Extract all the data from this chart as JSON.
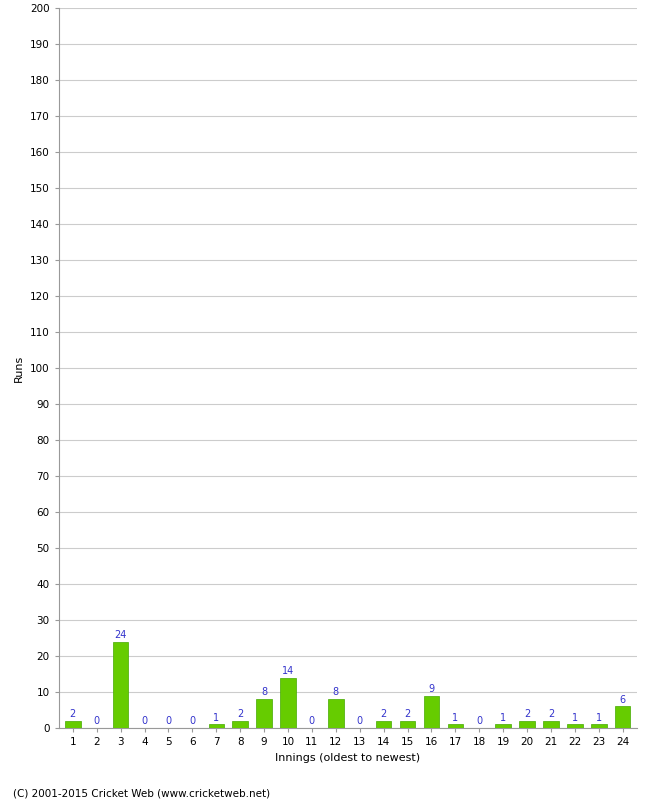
{
  "xlabel": "Innings (oldest to newest)",
  "ylabel": "Runs",
  "categories": [
    1,
    2,
    3,
    4,
    5,
    6,
    7,
    8,
    9,
    10,
    11,
    12,
    13,
    14,
    15,
    16,
    17,
    18,
    19,
    20,
    21,
    22,
    23,
    24
  ],
  "values": [
    2,
    0,
    24,
    0,
    0,
    0,
    1,
    2,
    8,
    14,
    0,
    8,
    0,
    2,
    2,
    9,
    1,
    0,
    1,
    2,
    2,
    1,
    1,
    6
  ],
  "bar_color": "#66cc00",
  "bar_edge_color": "#44aa00",
  "label_color": "#3333cc",
  "ylim": [
    0,
    200
  ],
  "yticks": [
    0,
    10,
    20,
    30,
    40,
    50,
    60,
    70,
    80,
    90,
    100,
    110,
    120,
    130,
    140,
    150,
    160,
    170,
    180,
    190,
    200
  ],
  "background_color": "#ffffff",
  "grid_color": "#cccccc",
  "footer": "(C) 2001-2015 Cricket Web (www.cricketweb.net)",
  "label_fontsize": 7,
  "axis_label_fontsize": 8,
  "tick_fontsize": 7.5,
  "footer_fontsize": 7.5
}
